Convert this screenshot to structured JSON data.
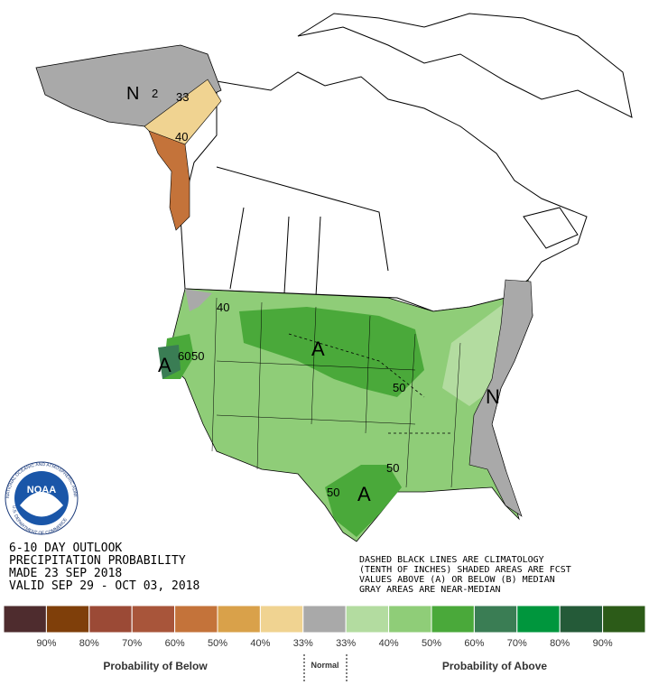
{
  "map": {
    "labels": [
      "N",
      "2",
      "33",
      "40",
      "40",
      "A",
      "60",
      "50",
      "A",
      "50",
      "N",
      "50",
      "50",
      "A"
    ]
  },
  "logo": {
    "name": "NOAA",
    "ring_top": "NATIONAL OCEANIC AND ATMOSPHERIC ADMINISTRATION",
    "ring_bottom": "U.S. DEPARTMENT OF COMMERCE"
  },
  "outlook": {
    "lines": [
      "6-10 DAY OUTLOOK",
      "PRECIPITATION PROBABILITY",
      "MADE  23 SEP 2018",
      "VALID  SEP 29 - OCT 03, 2018"
    ]
  },
  "notes": [
    "DASHED BLACK LINES ARE CLIMATOLOGY",
    "(TENTH OF INCHES) SHADED AREAS ARE FCST",
    "VALUES ABOVE (A) OR BELOW (B) MEDIAN",
    "GRAY AREAS ARE NEAR-MEDIAN"
  ],
  "legend": {
    "colors": [
      "#4e2c2e",
      "#7f3f0a",
      "#9b4a36",
      "#a8553a",
      "#c4733a",
      "#d9a14a",
      "#f0d391",
      "#a9a9a9",
      "#b3dca0",
      "#8fcd78",
      "#4aa93a",
      "#3a7d54",
      "#00963d",
      "#245a38",
      "#2c5b18"
    ],
    "labels": [
      "90%",
      "80%",
      "70%",
      "60%",
      "50%",
      "40%",
      "33%",
      "33%",
      "40%",
      "50%",
      "60%",
      "70%",
      "80%",
      "90%"
    ],
    "below_title": "Probability of Below",
    "normal": "Normal",
    "above_title": "Probability of Above"
  }
}
